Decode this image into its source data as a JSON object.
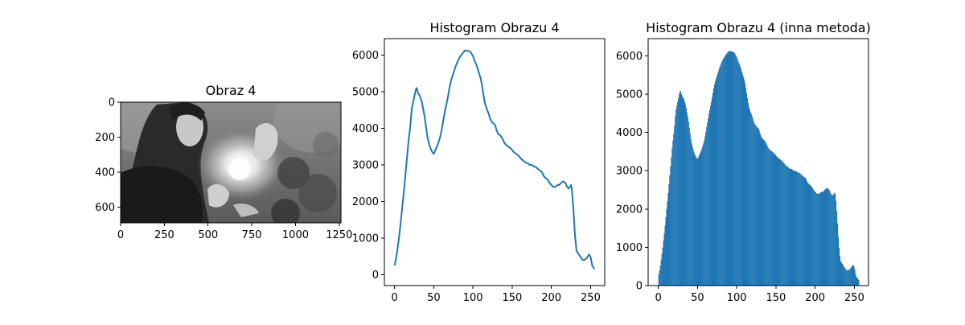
{
  "chart_data": [
    {
      "type": "image",
      "title": "Obraz 4",
      "image_description": "Grayscale photo",
      "xlim": [
        0,
        1260
      ],
      "ylim": [
        690,
        0
      ],
      "xticks": [
        0,
        250,
        500,
        750,
        1000,
        1250
      ],
      "yticks": [
        0,
        200,
        400,
        600
      ]
    },
    {
      "type": "line",
      "title": "Histogram Obrazu 4",
      "xlim": [
        -13,
        268
      ],
      "ylim": [
        -300,
        6450
      ],
      "xticks": [
        0,
        50,
        100,
        150,
        200,
        250
      ],
      "yticks": [
        0,
        1000,
        2000,
        3000,
        4000,
        5000,
        6000
      ],
      "color": "#1f77b4",
      "series": [
        {
          "x": [
            0,
            2,
            5,
            8,
            10,
            12,
            15,
            18,
            20,
            22,
            25,
            27,
            28,
            29,
            30,
            32,
            35,
            38,
            40,
            42,
            45,
            48,
            50,
            52,
            55,
            58,
            60,
            62,
            65,
            68,
            70,
            72,
            75,
            78,
            80,
            82,
            85,
            88,
            90,
            92,
            95,
            97,
            98,
            99,
            100,
            101,
            102,
            103,
            105,
            107,
            110,
            112,
            115,
            118,
            120,
            122,
            125,
            128,
            130,
            132,
            135,
            138,
            140,
            142,
            145,
            148,
            150,
            152,
            155,
            158,
            160,
            162,
            165,
            168,
            170,
            172,
            175,
            178,
            180,
            182,
            185,
            188,
            190,
            192,
            195,
            198,
            200,
            202,
            205,
            208,
            210,
            212,
            215,
            218,
            220,
            222,
            224,
            225,
            226,
            228,
            230,
            232,
            235,
            238,
            240,
            242,
            245,
            248,
            250,
            252,
            255
          ],
          "values": [
            250,
            450,
            900,
            1450,
            1900,
            2300,
            3000,
            3700,
            4050,
            4550,
            4850,
            5050,
            5100,
            5050,
            4950,
            4900,
            4700,
            4350,
            4050,
            3750,
            3500,
            3350,
            3300,
            3400,
            3550,
            3750,
            3950,
            4200,
            4550,
            4850,
            5100,
            5300,
            5500,
            5700,
            5800,
            5900,
            6000,
            6080,
            6130,
            6120,
            6110,
            6080,
            6050,
            6000,
            5980,
            5900,
            5850,
            5800,
            5700,
            5550,
            5350,
            5100,
            4700,
            4500,
            4400,
            4250,
            4150,
            4100,
            3950,
            3850,
            3800,
            3700,
            3600,
            3550,
            3500,
            3450,
            3400,
            3350,
            3300,
            3250,
            3200,
            3150,
            3100,
            3050,
            3050,
            3000,
            3000,
            2950,
            2950,
            2900,
            2850,
            2800,
            2700,
            2650,
            2600,
            2500,
            2450,
            2400,
            2400,
            2450,
            2450,
            2500,
            2550,
            2500,
            2400,
            2350,
            2400,
            2450,
            2350,
            1800,
            1100,
            650,
            550,
            450,
            400,
            400,
            450,
            550,
            480,
            250,
            150
          ]
        }
      ]
    },
    {
      "type": "bar",
      "title": "Histogram Obrazu 4 (inna metoda)",
      "xlim": [
        -13,
        268
      ],
      "ylim": [
        0,
        6450
      ],
      "xticks": [
        0,
        50,
        100,
        150,
        200,
        250
      ],
      "yticks": [
        0,
        1000,
        2000,
        3000,
        4000,
        5000,
        6000
      ],
      "color": "#1f77b4",
      "bins": 256
    }
  ]
}
